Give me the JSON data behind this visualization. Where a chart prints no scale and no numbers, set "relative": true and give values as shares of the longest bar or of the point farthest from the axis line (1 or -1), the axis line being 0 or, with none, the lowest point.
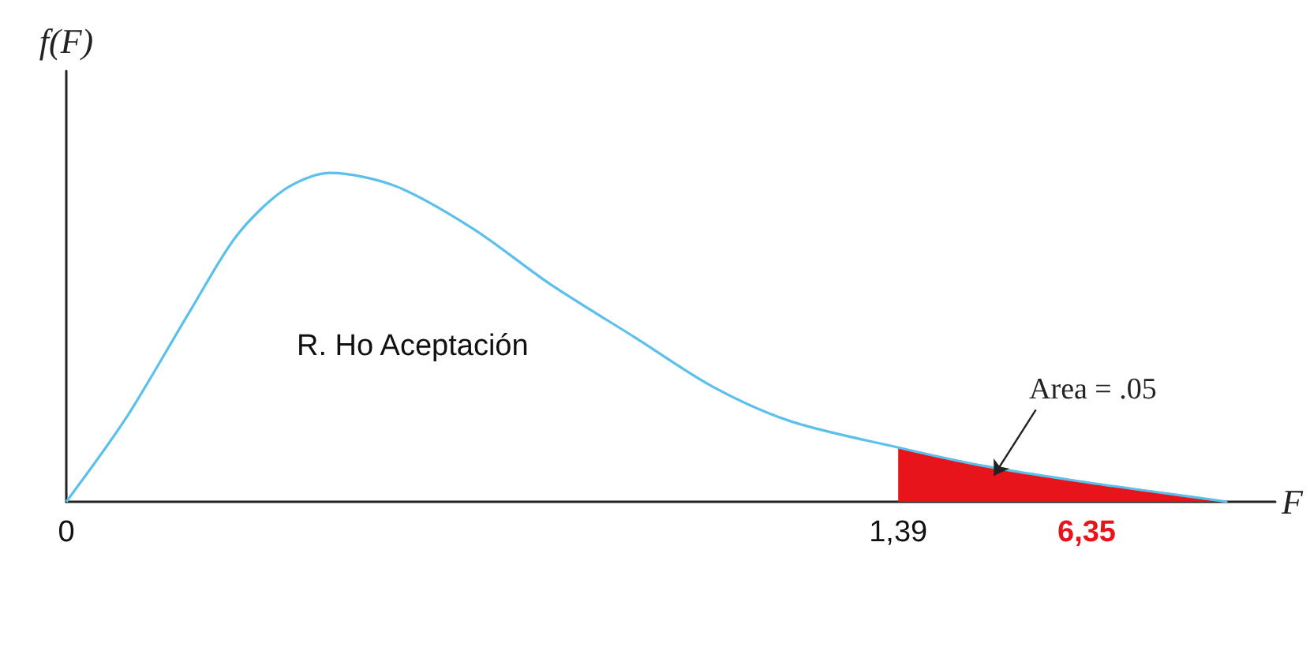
{
  "chart_data": {
    "type": "line",
    "relative": true,
    "xlabel": "F",
    "ylabel": "f(F)",
    "xlim": [
      0,
      2.02
    ],
    "xticks": [
      0,
      {
        "value": 1.39,
        "label": "1,39"
      }
    ],
    "series": [
      {
        "color": "#5bc0eb",
        "x": [
          0,
          0.1,
          0.21,
          0.285,
          0.365,
          0.44,
          0.55,
          0.68,
          0.81,
          0.95,
          1.08,
          1.21,
          1.39,
          1.53,
          1.69,
          1.82,
          1.94
        ],
        "values": [
          0,
          0.255,
          0.59,
          0.81,
          0.95,
          1,
          0.96,
          0.83,
          0.66,
          0.5,
          0.35,
          0.245,
          0.165,
          0.11,
          0.063,
          0.03,
          0
        ]
      },
      {
        "type": "area",
        "color": "#e8141c",
        "x": [
          1.39,
          1.53,
          1.69,
          1.82,
          1.94
        ],
        "values": [
          0.165,
          0.11,
          0.063,
          0.03,
          0
        ]
      }
    ],
    "annotations": [
      "R. Ho Aceptación",
      "Area = .05",
      "6,35"
    ],
    "grid": false,
    "marker": "none",
    "line_style": "solid"
  }
}
